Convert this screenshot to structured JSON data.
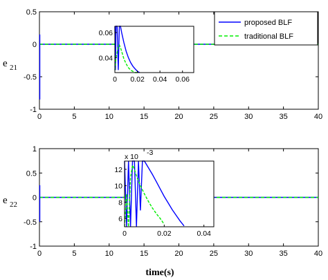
{
  "chart_data": [
    {
      "type": "line",
      "ylabel": "e",
      "ylabel_sub": "21",
      "xlabel": "",
      "xlim": [
        0,
        40
      ],
      "ylim": [
        -1,
        0.5
      ],
      "xticks": [
        "0",
        "5",
        "10",
        "15",
        "20",
        "25",
        "30",
        "35",
        "40"
      ],
      "yticks": [
        "-1",
        "-0.5",
        "0",
        "0.5"
      ],
      "legend": {
        "placement": "top-right",
        "entries": [
          "proposed BLF",
          "traditional BLF"
        ]
      },
      "series": [
        {
          "name": "proposed BLF",
          "x": [
            0,
            40
          ],
          "y": [
            0,
            0
          ],
          "style": "solid"
        },
        {
          "name": "traditional BLF",
          "x": [
            0,
            40
          ],
          "y": [
            0,
            0
          ],
          "style": "dashed"
        }
      ],
      "inset": {
        "xlim": [
          0,
          0.07
        ],
        "ylim": [
          0.028,
          0.065
        ],
        "xticks": [
          "0",
          "0.02",
          "0.04",
          "0.06"
        ],
        "yticks": [
          "0.04",
          "0.06"
        ],
        "series": [
          {
            "name": "proposed BLF",
            "x": [
              0.0,
              0.0005,
              0.001,
              0.002,
              0.003,
              0.004,
              0.005,
              0.006,
              0.008,
              0.01,
              0.012,
              0.014,
              0.016,
              0.018,
              0.02,
              0.022
            ],
            "y": [
              0.065,
              0.03,
              0.065,
              0.065,
              0.03,
              0.065,
              0.065,
              0.06,
              0.052,
              0.045,
              0.04,
              0.036,
              0.033,
              0.031,
              0.029,
              0.028
            ]
          },
          {
            "name": "traditional BLF",
            "x": [
              0.0,
              0.001,
              0.002,
              0.003,
              0.004,
              0.005,
              0.006,
              0.008,
              0.01,
              0.012,
              0.014,
              0.016,
              0.018,
              0.02
            ],
            "y": [
              0.03,
              0.04,
              0.044,
              0.049,
              0.05,
              0.048,
              0.045,
              0.039,
              0.035,
              0.032,
              0.03,
              0.029,
              0.028,
              0.028
            ]
          }
        ]
      }
    },
    {
      "type": "line",
      "ylabel": "e",
      "ylabel_sub": "22",
      "xlabel": "time(s)",
      "xlim": [
        0,
        40
      ],
      "ylim": [
        -1,
        1
      ],
      "xticks": [
        "0",
        "5",
        "10",
        "15",
        "20",
        "25",
        "30",
        "35",
        "40"
      ],
      "yticks": [
        "-1",
        "-0.5",
        "0",
        "0.5",
        "1"
      ],
      "series": [
        {
          "name": "proposed BLF",
          "x": [
            0,
            40
          ],
          "y": [
            0,
            0
          ],
          "style": "solid"
        },
        {
          "name": "traditional BLF",
          "x": [
            0,
            40
          ],
          "y": [
            0,
            0
          ],
          "style": "dashed"
        }
      ],
      "inset": {
        "exponent_label": "x 10",
        "exponent_power": "-3",
        "xlim": [
          0,
          0.045
        ],
        "ylim": [
          5,
          13
        ],
        "xticks": [
          "0",
          "0.02",
          "0.04"
        ],
        "yticks": [
          "6",
          "8",
          "10",
          "12"
        ],
        "series": [
          {
            "name": "proposed BLF",
            "x": [
              0.0,
              0.001,
              0.002,
              0.003,
              0.004,
              0.005,
              0.006,
              0.007,
              0.008,
              0.009,
              0.01,
              0.012,
              0.014,
              0.016,
              0.018,
              0.02,
              0.022,
              0.024,
              0.026,
              0.028,
              0.03
            ],
            "y": [
              13,
              5,
              13,
              5,
              13,
              13,
              5,
              13,
              7,
              13,
              13,
              12.2,
              11.4,
              10.5,
              9.6,
              8.7,
              7.9,
              7.1,
              6.4,
              5.7,
              5.1
            ]
          },
          {
            "name": "traditional BLF",
            "x": [
              0.0,
              0.001,
              0.002,
              0.003,
              0.004,
              0.005,
              0.006,
              0.008,
              0.01,
              0.012,
              0.014,
              0.016,
              0.018,
              0.02
            ],
            "y": [
              5,
              9,
              5,
              11,
              12.5,
              12,
              11.2,
              10.0,
              9.0,
              8.1,
              7.3,
              6.6,
              6.0,
              5.3
            ]
          }
        ]
      }
    }
  ],
  "colors": {
    "proposed": "#0000ff",
    "traditional": "#00ee00"
  }
}
